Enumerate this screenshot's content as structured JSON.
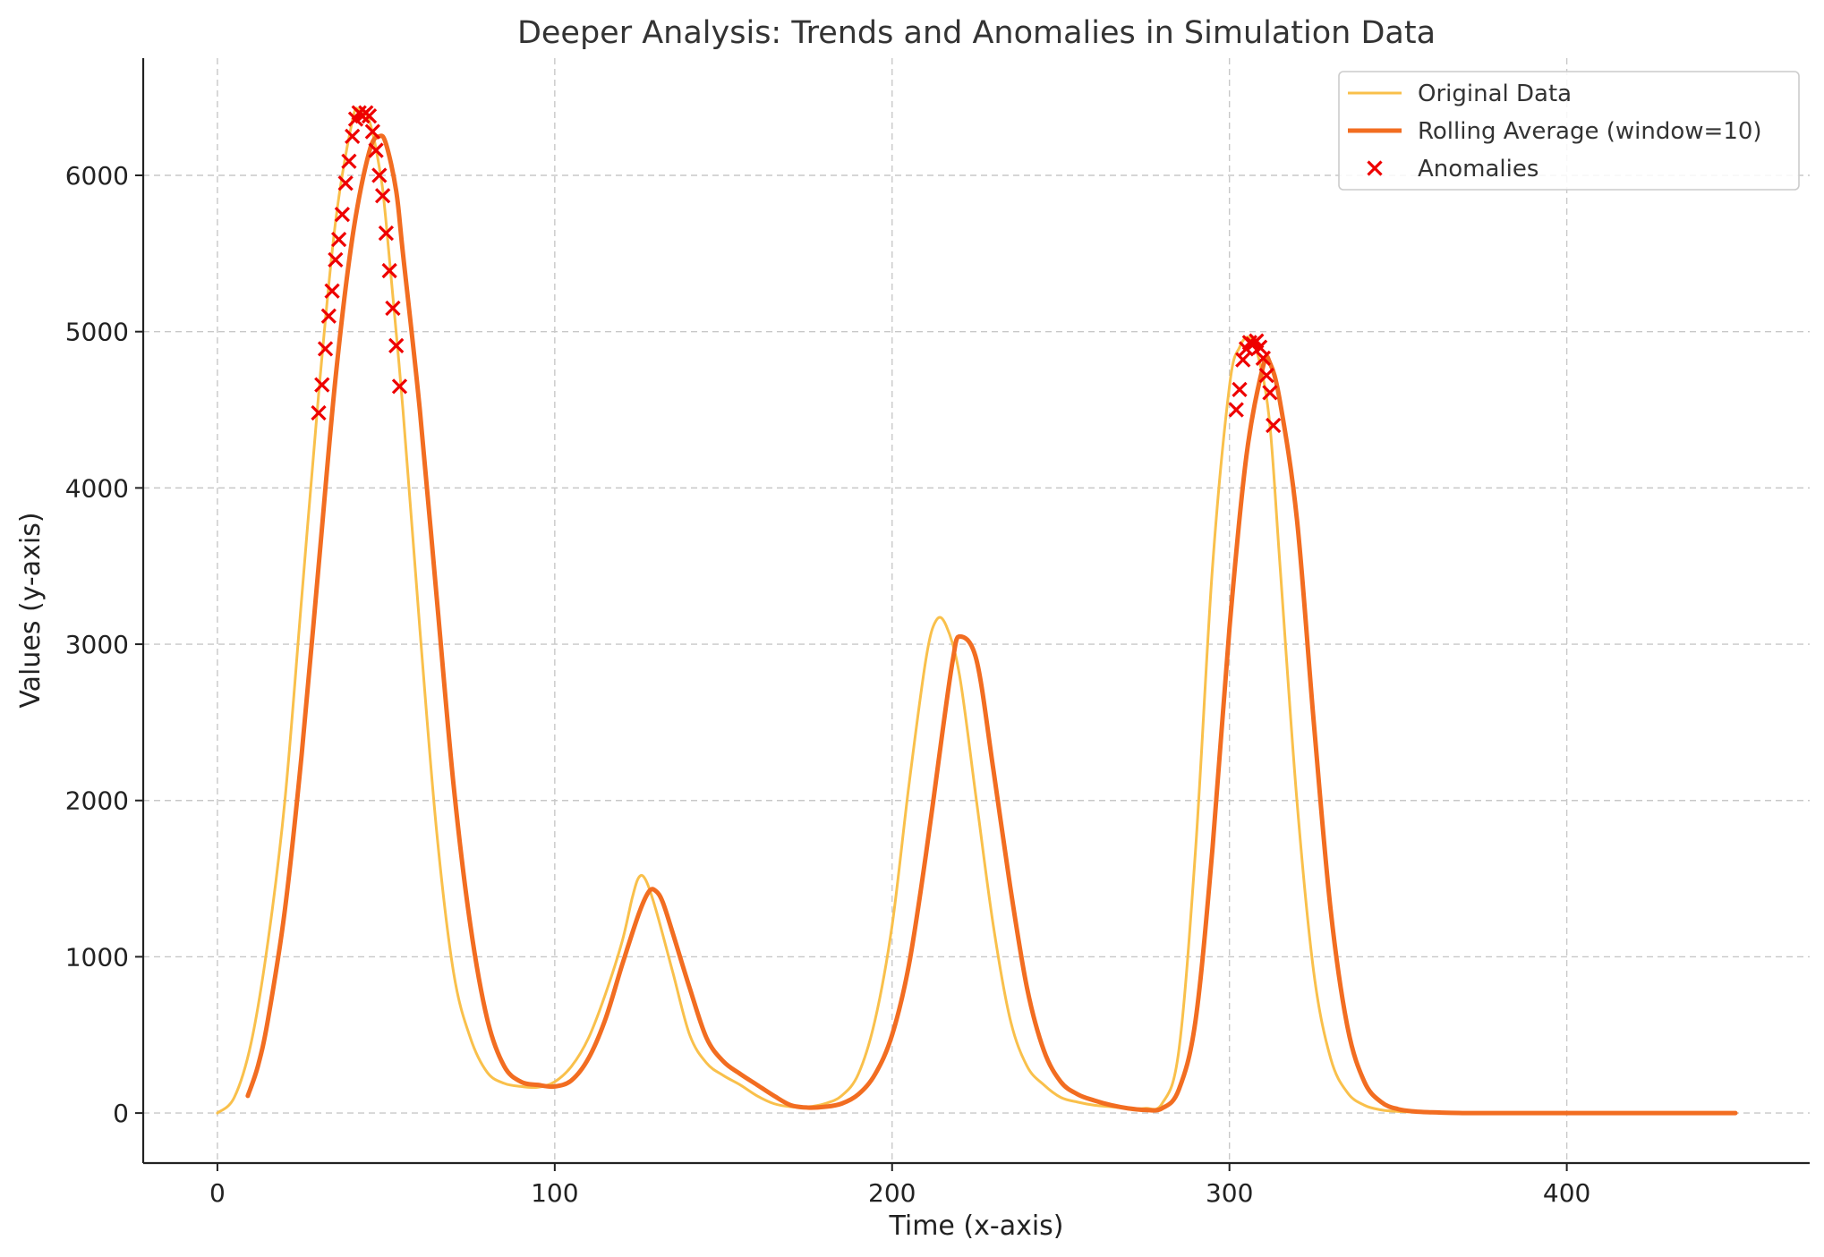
{
  "chart_data": {
    "type": "line",
    "title": "Deeper Analysis: Trends and Anomalies in Simulation Data",
    "xlabel": "Time (x-axis)",
    "ylabel": "Values (y-axis)",
    "xlim": [
      -22,
      472
    ],
    "ylim": [
      -320,
      6750
    ],
    "x_ticks": [
      0,
      100,
      200,
      300,
      400
    ],
    "y_ticks": [
      0,
      1000,
      2000,
      3000,
      4000,
      5000,
      6000
    ],
    "grid": true,
    "legend_position": "top-right",
    "series": [
      {
        "name": "Original Data",
        "kind": "line",
        "color": "#f9c04b",
        "width": 3,
        "x": [
          0,
          5,
          10,
          15,
          20,
          25,
          30,
          35,
          40,
          42,
          45,
          48,
          50,
          55,
          60,
          65,
          70,
          75,
          80,
          85,
          90,
          95,
          100,
          105,
          110,
          115,
          120,
          123,
          125,
          127,
          130,
          135,
          140,
          145,
          150,
          155,
          160,
          165,
          170,
          175,
          180,
          185,
          190,
          195,
          200,
          205,
          210,
          213,
          216,
          220,
          225,
          230,
          235,
          240,
          245,
          250,
          255,
          260,
          265,
          270,
          275,
          280,
          285,
          290,
          295,
          300,
          303,
          306,
          309,
          312,
          315,
          320,
          325,
          330,
          335,
          340,
          345,
          350,
          360,
          370,
          380,
          400,
          420,
          450
        ],
        "values": [
          0,
          100,
          450,
          1100,
          2000,
          3300,
          4600,
          5700,
          6350,
          6420,
          6350,
          6050,
          5700,
          4500,
          3100,
          1800,
          900,
          480,
          260,
          190,
          170,
          165,
          200,
          300,
          480,
          760,
          1100,
          1380,
          1510,
          1490,
          1300,
          900,
          500,
          320,
          240,
          180,
          110,
          60,
          40,
          40,
          60,
          110,
          250,
          600,
          1200,
          2100,
          2900,
          3150,
          3120,
          2800,
          2000,
          1200,
          600,
          300,
          180,
          100,
          70,
          50,
          40,
          30,
          30,
          60,
          400,
          1700,
          3500,
          4650,
          4900,
          4960,
          4800,
          4400,
          3500,
          2000,
          900,
          350,
          130,
          50,
          20,
          10,
          2,
          0,
          0,
          0,
          0,
          0
        ]
      },
      {
        "name": "Rolling Average (window=10)",
        "kind": "line",
        "color": "#f26d21",
        "width": 5,
        "x": [
          9,
          12,
          15,
          20,
          25,
          30,
          35,
          40,
          45,
          48,
          50,
          53,
          55,
          60,
          65,
          70,
          75,
          80,
          85,
          90,
          95,
          100,
          105,
          110,
          115,
          120,
          125,
          128,
          130,
          132,
          135,
          140,
          145,
          150,
          155,
          160,
          165,
          170,
          175,
          180,
          185,
          190,
          195,
          200,
          205,
          210,
          215,
          218,
          220,
          225,
          230,
          235,
          240,
          245,
          250,
          255,
          260,
          265,
          270,
          275,
          280,
          285,
          290,
          295,
          300,
          305,
          310,
          312,
          315,
          320,
          325,
          330,
          335,
          340,
          345,
          350,
          355,
          360,
          370,
          380,
          400,
          420,
          450
        ],
        "values": [
          110,
          300,
          600,
          1300,
          2300,
          3500,
          4700,
          5600,
          6150,
          6250,
          6200,
          5900,
          5500,
          4500,
          3300,
          2100,
          1200,
          600,
          300,
          200,
          180,
          170,
          210,
          350,
          600,
          950,
          1280,
          1420,
          1420,
          1350,
          1150,
          800,
          480,
          330,
          250,
          180,
          110,
          50,
          35,
          40,
          60,
          120,
          250,
          500,
          950,
          1650,
          2450,
          2900,
          3050,
          2900,
          2200,
          1450,
          800,
          400,
          200,
          120,
          80,
          50,
          30,
          20,
          30,
          150,
          600,
          1700,
          3100,
          4200,
          4780,
          4800,
          4550,
          3800,
          2500,
          1300,
          550,
          200,
          70,
          25,
          10,
          5,
          0,
          0,
          0,
          0,
          0
        ]
      },
      {
        "name": "Anomalies",
        "kind": "scatter",
        "marker": "x",
        "color": "#ee0000",
        "x": [
          30,
          31,
          32,
          33,
          34,
          35,
          36,
          37,
          38,
          39,
          40,
          41,
          42,
          43,
          44,
          45,
          46,
          47,
          48,
          49,
          50,
          51,
          52,
          53,
          54,
          302,
          303,
          304,
          305,
          306,
          307,
          308,
          309,
          310,
          311,
          312,
          313
        ],
        "values": [
          4480,
          4660,
          4890,
          5100,
          5260,
          5460,
          5590,
          5750,
          5950,
          6090,
          6250,
          6360,
          6400,
          6380,
          6400,
          6380,
          6280,
          6160,
          6000,
          5870,
          5630,
          5390,
          5150,
          4910,
          4650,
          4500,
          4630,
          4820,
          4890,
          4930,
          4920,
          4940,
          4900,
          4830,
          4720,
          4610,
          4400
        ]
      }
    ]
  }
}
